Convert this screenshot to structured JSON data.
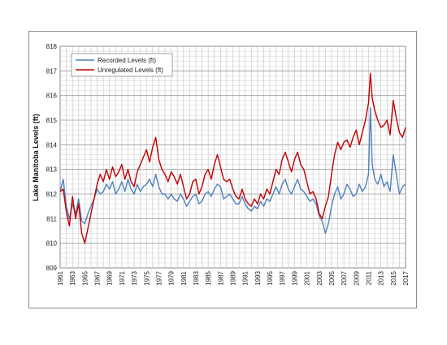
{
  "chart_data": {
    "type": "line",
    "title": "",
    "xlabel": "",
    "ylabel": "Lake Manitoba Levels (ft)",
    "xlim": [
      1961,
      2017
    ],
    "ylim": [
      809,
      818
    ],
    "x_tick_labels": [
      "1961",
      "1963",
      "1965",
      "1967",
      "1969",
      "1971",
      "1973",
      "1975",
      "1977",
      "1979",
      "1981",
      "1983",
      "1985",
      "1987",
      "1989",
      "1991",
      "1993",
      "1995",
      "1997",
      "1999",
      "2001",
      "2003",
      "2005",
      "2007",
      "2009",
      "2011",
      "2013",
      "2015",
      "2017"
    ],
    "y_tick_labels": [
      "809",
      "810",
      "811",
      "812",
      "813",
      "814",
      "815",
      "816",
      "817",
      "818"
    ],
    "grid": true,
    "legend_position": "top-left",
    "series": [
      {
        "name": "Recorded Levels (ft)",
        "color": "#4f81bd",
        "x": [
          1961.0,
          1961.5,
          1962.0,
          1962.5,
          1963.0,
          1963.5,
          1964.0,
          1964.5,
          1965.0,
          1965.5,
          1966.0,
          1966.5,
          1967.0,
          1967.5,
          1968.0,
          1968.5,
          1969.0,
          1969.5,
          1970.0,
          1970.5,
          1971.0,
          1971.5,
          1972.0,
          1972.5,
          1973.0,
          1973.5,
          1974.0,
          1974.5,
          1975.0,
          1975.5,
          1976.0,
          1976.5,
          1977.0,
          1977.5,
          1978.0,
          1978.5,
          1979.0,
          1979.5,
          1980.0,
          1980.5,
          1981.0,
          1981.5,
          1982.0,
          1982.5,
          1983.0,
          1983.5,
          1984.0,
          1984.5,
          1985.0,
          1985.5,
          1986.0,
          1986.5,
          1987.0,
          1987.5,
          1988.0,
          1988.5,
          1989.0,
          1989.5,
          1990.0,
          1990.5,
          1991.0,
          1991.5,
          1992.0,
          1992.5,
          1993.0,
          1993.5,
          1994.0,
          1994.5,
          1995.0,
          1995.5,
          1996.0,
          1996.5,
          1997.0,
          1997.5,
          1998.0,
          1998.5,
          1999.0,
          1999.5,
          2000.0,
          2000.5,
          2001.0,
          2001.5,
          2002.0,
          2002.5,
          2003.0,
          2003.5,
          2004.0,
          2004.5,
          2005.0,
          2005.5,
          2006.0,
          2006.5,
          2007.0,
          2007.5,
          2008.0,
          2008.5,
          2009.0,
          2009.5,
          2010.0,
          2010.5,
          2011.0,
          2011.3,
          2011.6,
          2012.0,
          2012.5,
          2013.0,
          2013.5,
          2014.0,
          2014.5,
          2015.0,
          2015.5,
          2016.0,
          2016.5,
          2017.0
        ],
        "y": [
          812.1,
          812.6,
          811.5,
          811.0,
          811.6,
          811.2,
          811.8,
          810.9,
          810.8,
          811.2,
          811.5,
          811.8,
          812.2,
          812.0,
          812.1,
          812.4,
          812.2,
          812.5,
          812.0,
          812.2,
          812.5,
          812.1,
          812.6,
          812.2,
          812.0,
          812.4,
          812.1,
          812.3,
          812.4,
          812.6,
          812.3,
          812.8,
          812.3,
          812.0,
          812.0,
          811.8,
          812.0,
          811.8,
          811.7,
          812.0,
          811.8,
          811.5,
          811.7,
          811.9,
          812.0,
          811.6,
          811.7,
          812.0,
          812.1,
          811.9,
          812.2,
          812.4,
          812.3,
          811.8,
          811.9,
          812.0,
          811.8,
          811.6,
          811.6,
          811.9,
          811.6,
          811.4,
          811.3,
          811.5,
          811.4,
          811.7,
          811.5,
          811.8,
          811.7,
          812.0,
          812.3,
          812.0,
          812.4,
          812.6,
          812.2,
          812.0,
          812.3,
          812.6,
          812.2,
          812.1,
          811.9,
          811.7,
          811.8,
          811.6,
          811.1,
          810.9,
          810.4,
          810.8,
          811.5,
          812.0,
          812.3,
          811.8,
          812.0,
          812.4,
          812.2,
          811.9,
          812.0,
          812.4,
          812.1,
          812.3,
          812.8,
          815.5,
          813.2,
          812.6,
          812.4,
          812.8,
          812.3,
          812.5,
          812.1,
          813.6,
          812.8,
          812.0,
          812.3,
          812.4
        ]
      },
      {
        "name": "Unregulated Levels (ft)",
        "color": "#c00000",
        "x": [
          1961.0,
          1961.5,
          1962.0,
          1962.5,
          1963.0,
          1963.5,
          1964.0,
          1964.5,
          1965.0,
          1965.5,
          1966.0,
          1966.5,
          1967.0,
          1967.5,
          1968.0,
          1968.5,
          1969.0,
          1969.5,
          1970.0,
          1970.5,
          1971.0,
          1971.5,
          1972.0,
          1972.5,
          1973.0,
          1973.5,
          1974.0,
          1974.5,
          1975.0,
          1975.5,
          1976.0,
          1976.5,
          1977.0,
          1977.5,
          1978.0,
          1978.5,
          1979.0,
          1979.5,
          1980.0,
          1980.5,
          1981.0,
          1981.5,
          1982.0,
          1982.5,
          1983.0,
          1983.5,
          1984.0,
          1984.5,
          1985.0,
          1985.5,
          1986.0,
          1986.5,
          1987.0,
          1987.5,
          1988.0,
          1988.5,
          1989.0,
          1989.5,
          1990.0,
          1990.5,
          1991.0,
          1991.5,
          1992.0,
          1992.5,
          1993.0,
          1993.5,
          1994.0,
          1994.5,
          1995.0,
          1995.5,
          1996.0,
          1996.5,
          1997.0,
          1997.5,
          1998.0,
          1998.5,
          1999.0,
          1999.5,
          2000.0,
          2000.5,
          2001.0,
          2001.5,
          2002.0,
          2002.5,
          2003.0,
          2003.5,
          2004.0,
          2004.5,
          2005.0,
          2005.5,
          2006.0,
          2006.5,
          2007.0,
          2007.5,
          2008.0,
          2008.5,
          2009.0,
          2009.5,
          2010.0,
          2010.5,
          2011.0,
          2011.3,
          2011.6,
          2012.0,
          2012.5,
          2013.0,
          2013.5,
          2014.0,
          2014.5,
          2015.0,
          2015.5,
          2016.0,
          2016.5,
          2017.0
        ],
        "y": [
          812.1,
          812.2,
          811.3,
          810.7,
          811.9,
          811.0,
          811.6,
          810.4,
          810.0,
          810.6,
          811.2,
          811.8,
          812.4,
          812.8,
          812.5,
          813.0,
          812.6,
          813.1,
          812.7,
          812.9,
          813.2,
          812.6,
          813.0,
          812.5,
          812.3,
          812.9,
          813.2,
          813.5,
          813.8,
          813.3,
          813.9,
          814.3,
          813.4,
          813.0,
          812.8,
          812.5,
          812.9,
          812.7,
          812.4,
          812.8,
          812.3,
          811.8,
          812.0,
          812.5,
          812.6,
          812.0,
          812.3,
          812.8,
          813.0,
          812.6,
          813.2,
          813.6,
          813.1,
          812.6,
          812.5,
          812.6,
          812.2,
          811.9,
          811.8,
          812.2,
          811.8,
          811.6,
          811.5,
          811.8,
          811.6,
          812.0,
          811.8,
          812.2,
          812.0,
          812.5,
          813.0,
          812.8,
          813.4,
          813.7,
          813.3,
          812.9,
          813.4,
          813.7,
          813.2,
          813.0,
          812.5,
          812.0,
          812.1,
          811.8,
          811.2,
          811.0,
          811.5,
          811.9,
          812.8,
          813.6,
          814.1,
          813.8,
          814.1,
          814.2,
          813.9,
          814.3,
          814.6,
          814.0,
          814.5,
          815.0,
          815.7,
          816.9,
          815.9,
          815.4,
          815.0,
          814.7,
          814.8,
          815.0,
          814.4,
          815.8,
          815.1,
          814.5,
          814.3,
          814.7
        ]
      }
    ]
  }
}
